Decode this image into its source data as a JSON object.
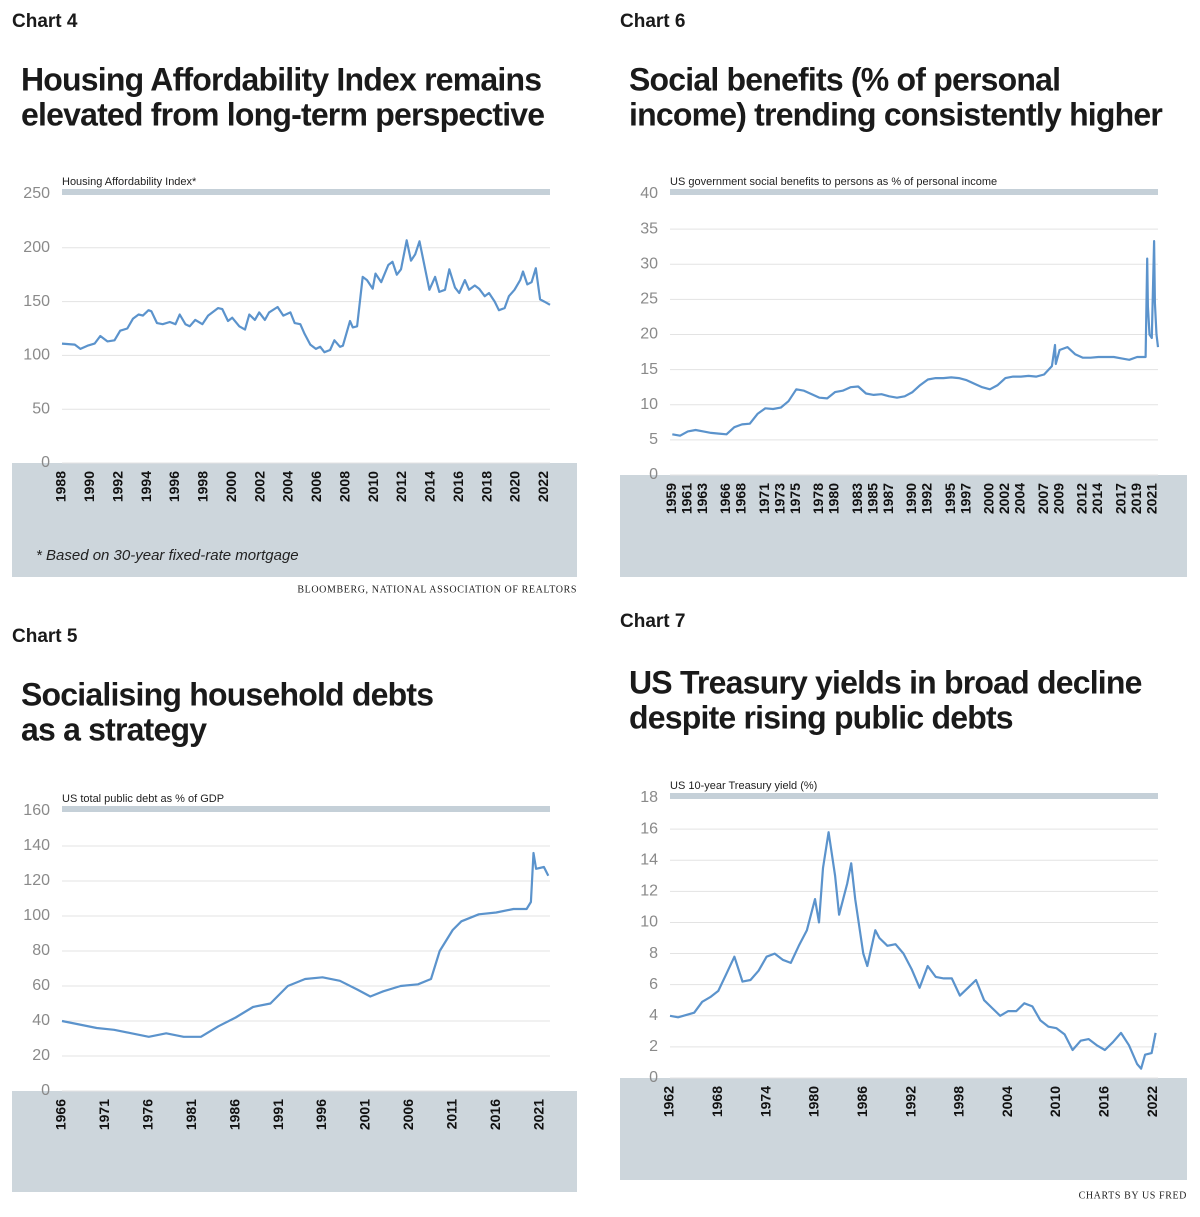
{
  "chart_data": [
    {
      "type": "line",
      "label": "Chart 4",
      "title": [
        "Housing Affordability Index remains",
        "elevated from long-term perspective"
      ],
      "subtitle": "Housing Affordability Index*",
      "footnote": "* Based on 30-year fixed-rate mortgage",
      "source": "BLOOMBERG, NATIONAL ASSOCIATION OF REALTORS",
      "color": "#5b93cc",
      "grid": true,
      "xlim": [
        1988,
        2022.4
      ],
      "xticks": [
        1988,
        1990,
        1992,
        1994,
        1996,
        1998,
        2000,
        2002,
        2004,
        2006,
        2008,
        2010,
        2012,
        2014,
        2016,
        2018,
        2020,
        2022
      ],
      "ylim": [
        0,
        250
      ],
      "yticks": [
        0,
        50,
        100,
        150,
        200,
        250
      ],
      "x": [
        1988.0,
        1988.9,
        1989.3,
        1989.8,
        1990.3,
        1990.7,
        1991.2,
        1991.7,
        1992.1,
        1992.6,
        1993.0,
        1993.4,
        1993.7,
        1994.1,
        1994.3,
        1994.7,
        1995.1,
        1995.6,
        1996.0,
        1996.3,
        1996.7,
        1997.0,
        1997.4,
        1997.9,
        1998.3,
        1998.6,
        1999.0,
        1999.3,
        1999.7,
        2000.0,
        2000.5,
        2000.9,
        2001.2,
        2001.6,
        2001.9,
        2002.3,
        2002.6,
        2003.2,
        2003.6,
        2004.1,
        2004.4,
        2004.8,
        2005.1,
        2005.5,
        2005.9,
        2006.2,
        2006.5,
        2006.9,
        2007.2,
        2007.6,
        2007.8,
        2008.3,
        2008.5,
        2008.8,
        2009.2,
        2009.5,
        2009.9,
        2010.1,
        2010.5,
        2011.0,
        2011.3,
        2011.6,
        2011.9,
        2012.3,
        2012.6,
        2012.9,
        2013.2,
        2013.6,
        2013.9,
        2014.3,
        2014.6,
        2015.0,
        2015.3,
        2015.7,
        2016.0,
        2016.4,
        2016.7,
        2017.1,
        2017.4,
        2017.8,
        2018.1,
        2018.5,
        2018.8,
        2019.2,
        2019.5,
        2019.9,
        2020.3,
        2020.5,
        2020.8,
        2021.1,
        2021.4,
        2021.7,
        2022.0,
        2022.4
      ],
      "values": [
        111,
        110,
        106,
        109,
        111,
        118,
        113,
        114,
        123,
        125,
        134,
        138,
        137,
        142,
        141,
        130,
        129,
        131,
        129,
        138,
        129,
        127,
        133,
        129,
        137,
        140,
        144,
        143,
        132,
        135,
        127,
        124,
        138,
        133,
        140,
        133,
        140,
        145,
        137,
        140,
        130,
        129,
        120,
        110,
        106,
        108,
        103,
        105,
        114,
        108,
        109,
        132,
        126,
        127,
        173,
        170,
        162,
        176,
        168,
        184,
        187,
        175,
        180,
        207,
        188,
        194,
        206,
        180,
        161,
        173,
        159,
        161,
        180,
        163,
        158,
        170,
        161,
        165,
        162,
        155,
        158,
        150,
        142,
        144,
        155,
        161,
        170,
        178,
        166,
        168,
        181,
        152,
        150,
        147
      ]
    },
    {
      "type": "line",
      "label": "Chart 6",
      "title": [
        "Social benefits (% of personal",
        "income) trending consistently higher"
      ],
      "subtitle": "US government social benefits to persons as % of personal income",
      "color": "#5b93cc",
      "grid": true,
      "xlim": [
        1958.7,
        2021.7
      ],
      "xticks": [
        1959,
        1961,
        1963,
        1966,
        1968,
        1971,
        1973,
        1975,
        1978,
        1980,
        1983,
        1985,
        1987,
        1990,
        1992,
        1995,
        1997,
        2000,
        2002,
        2004,
        2007,
        2009,
        2012,
        2014,
        2017,
        2019,
        2021
      ],
      "ylim": [
        0,
        40
      ],
      "yticks": [
        0,
        5,
        10,
        15,
        20,
        25,
        30,
        35,
        40
      ],
      "x": [
        1959,
        1960,
        1961,
        1962,
        1963,
        1964,
        1965,
        1966,
        1967,
        1968,
        1969,
        1970,
        1971,
        1972,
        1973,
        1974,
        1975,
        1976,
        1977,
        1978,
        1979,
        1980,
        1981,
        1982,
        1983,
        1984,
        1985,
        1986,
        1987,
        1988,
        1989,
        1990,
        1991,
        1992,
        1993,
        1994,
        1995,
        1996,
        1997,
        1998,
        1999,
        2000,
        2001,
        2002,
        2003,
        2004,
        2005,
        2006,
        2007,
        2008,
        2008.4,
        2008.5,
        2009,
        2010,
        2011,
        2012,
        2013,
        2014,
        2015,
        2016,
        2017,
        2018,
        2019,
        2020.1,
        2020.3,
        2020.4,
        2020.6,
        2020.9,
        2021.2,
        2021.3,
        2021.5,
        2021.7
      ],
      "values": [
        5.8,
        5.6,
        6.2,
        6.4,
        6.2,
        6.0,
        5.9,
        5.8,
        6.8,
        7.2,
        7.3,
        8.7,
        9.5,
        9.4,
        9.6,
        10.5,
        12.2,
        12.0,
        11.5,
        11.0,
        10.9,
        11.8,
        12.0,
        12.5,
        12.6,
        11.6,
        11.4,
        11.5,
        11.2,
        11.0,
        11.2,
        11.8,
        12.8,
        13.6,
        13.8,
        13.8,
        13.9,
        13.8,
        13.5,
        13.0,
        12.5,
        12.2,
        12.8,
        13.8,
        14.0,
        14.0,
        14.1,
        14.0,
        14.3,
        15.5,
        18.5,
        15.8,
        17.8,
        18.2,
        17.2,
        16.7,
        16.7,
        16.8,
        16.8,
        16.8,
        16.6,
        16.4,
        16.8,
        16.8,
        30.8,
        24.0,
        20.0,
        19.5,
        33.3,
        24.5,
        20.0,
        18.2
      ]
    },
    {
      "type": "line",
      "label": "Chart 5",
      "title": [
        "Socialising household debts",
        "as a strategy"
      ],
      "subtitle": "US total public debt as % of GDP",
      "color": "#5b93cc",
      "grid": true,
      "xlim": [
        1966,
        2022.2
      ],
      "xticks": [
        1966,
        1971,
        1976,
        1981,
        1986,
        1991,
        1996,
        2001,
        2006,
        2011,
        2016,
        2021
      ],
      "ylim": [
        0,
        160
      ],
      "yticks": [
        0,
        20,
        40,
        60,
        80,
        100,
        120,
        140,
        160
      ],
      "x": [
        1966,
        1968,
        1970,
        1972,
        1974,
        1976,
        1978,
        1980,
        1982,
        1984,
        1986,
        1988,
        1990,
        1992,
        1994,
        1996,
        1998,
        2000,
        2001.5,
        2003,
        2005,
        2007,
        2008.5,
        2009.5,
        2011,
        2012,
        2014,
        2016,
        2018,
        2019.5,
        2020,
        2020.3,
        2020.6,
        2021.5,
        2022
      ],
      "values": [
        40,
        38,
        36,
        35,
        33,
        31,
        33,
        31,
        31,
        37,
        42,
        48,
        50,
        60,
        64,
        65,
        63,
        58,
        54,
        57,
        60,
        61,
        64,
        80,
        92,
        97,
        101,
        102,
        104,
        104,
        108,
        136,
        127,
        128,
        123
      ]
    },
    {
      "type": "line",
      "label": "Chart 7",
      "title": [
        "US Treasury yields in broad decline",
        "despite rising public debts"
      ],
      "subtitle": "US 10-year Treasury yield (%)",
      "source": "CHARTS BY US FRED",
      "color": "#5b93cc",
      "grid": true,
      "xlim": [
        1962,
        2022.6
      ],
      "xticks": [
        1962,
        1968,
        1974,
        1980,
        1986,
        1992,
        1998,
        2004,
        2010,
        2016,
        2022
      ],
      "ylim": [
        0,
        18
      ],
      "yticks": [
        0,
        2,
        4,
        6,
        8,
        10,
        12,
        14,
        16,
        18
      ],
      "x": [
        1962,
        1963,
        1965,
        1966,
        1967,
        1968,
        1969,
        1970,
        1971,
        1972,
        1973,
        1974,
        1975,
        1976,
        1977,
        1978,
        1979,
        1980,
        1980.5,
        1981,
        1981.7,
        1982.5,
        1983,
        1984,
        1984.5,
        1985,
        1986,
        1986.5,
        1987.5,
        1988,
        1989,
        1990,
        1991,
        1992,
        1993,
        1994,
        1995,
        1996,
        1997,
        1998,
        1999,
        2000,
        2001,
        2002,
        2003,
        2004,
        2005,
        2006,
        2007,
        2008,
        2009,
        2010,
        2011,
        2012,
        2013,
        2014,
        2015,
        2016,
        2017,
        2018,
        2019,
        2020,
        2020.5,
        2021,
        2021.8,
        2022.3
      ],
      "values": [
        4.0,
        3.9,
        4.2,
        4.9,
        5.2,
        5.6,
        6.7,
        7.8,
        6.2,
        6.3,
        6.9,
        7.8,
        8.0,
        7.6,
        7.4,
        8.5,
        9.5,
        11.5,
        10.0,
        13.5,
        15.8,
        13.0,
        10.5,
        12.5,
        13.8,
        11.5,
        8.0,
        7.2,
        9.5,
        9.0,
        8.5,
        8.6,
        8.0,
        7.0,
        5.8,
        7.2,
        6.5,
        6.4,
        6.4,
        5.3,
        5.8,
        6.3,
        5.0,
        4.5,
        4.0,
        4.3,
        4.3,
        4.8,
        4.6,
        3.7,
        3.3,
        3.2,
        2.8,
        1.8,
        2.4,
        2.5,
        2.1,
        1.8,
        2.3,
        2.9,
        2.1,
        0.9,
        0.6,
        1.5,
        1.6,
        2.9
      ]
    }
  ]
}
